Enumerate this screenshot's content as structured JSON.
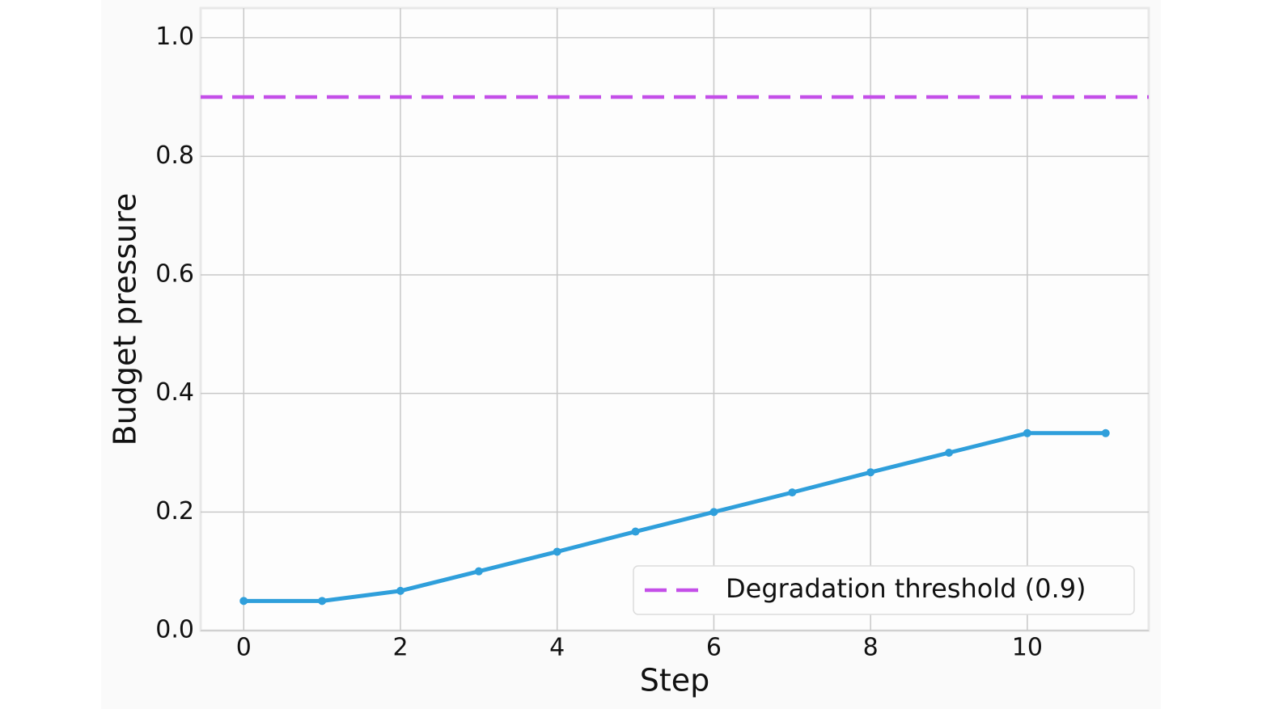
{
  "chart_data": {
    "type": "line",
    "x_label": "Step",
    "y_label": "Budget pressure",
    "x": [
      0,
      1,
      2,
      3,
      4,
      5,
      6,
      7,
      8,
      9,
      10,
      11
    ],
    "series": [
      {
        "color": "#2f9fdb",
        "values": [
          0.05,
          0.05,
          0.067,
          0.1,
          0.133,
          0.167,
          0.2,
          0.233,
          0.267,
          0.3,
          0.333,
          0.333
        ]
      }
    ],
    "threshold": {
      "name": "Degradation threshold (0.9)",
      "value": 0.9,
      "color": "#c44fe8"
    },
    "xlim": [
      -0.55,
      11.55
    ],
    "ylim": [
      0,
      1.05
    ],
    "xticks": [
      0,
      2,
      4,
      6,
      8,
      10
    ],
    "yticks": [
      {
        "value": 0,
        "label": "0.0"
      },
      0.2,
      0.4,
      0.6,
      0.8,
      {
        "value": 1,
        "label": "1.0"
      }
    ],
    "grid": true,
    "legend": "lower right"
  }
}
